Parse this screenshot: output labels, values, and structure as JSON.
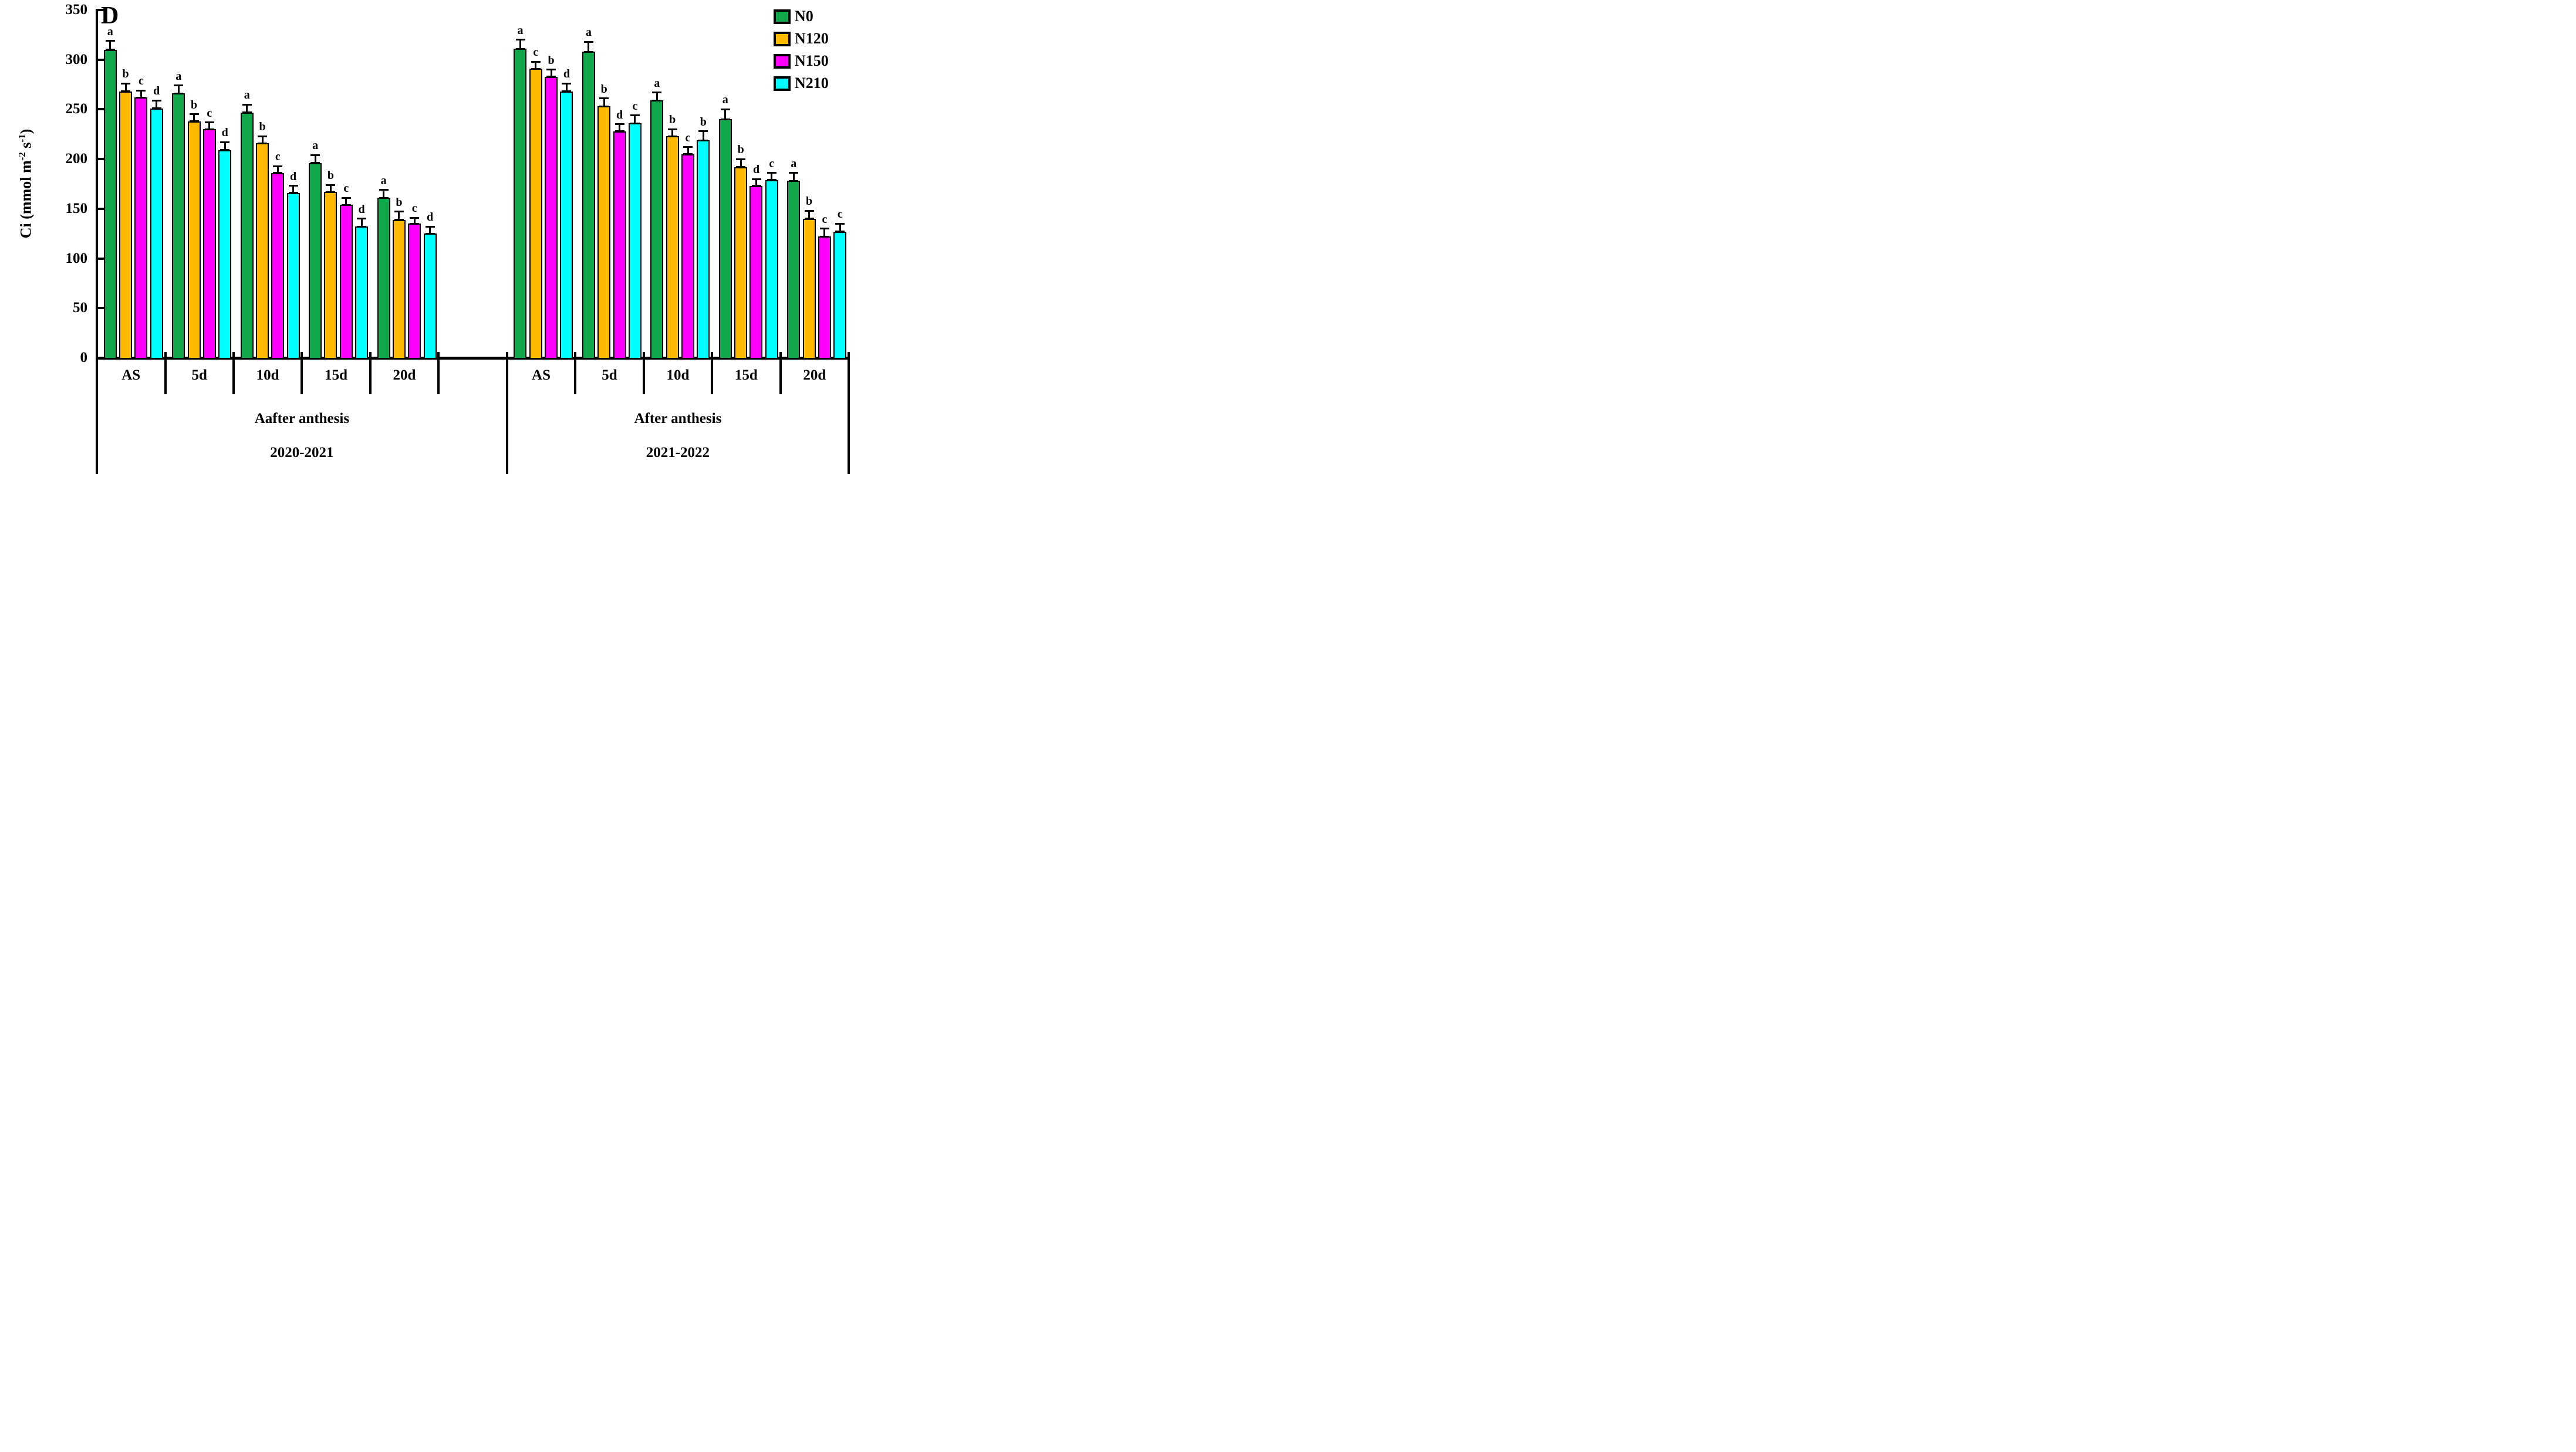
{
  "chart_data": {
    "type": "bar",
    "panel_letter": "D",
    "ylabel": "Ci (mmol m⁻² s⁻¹)",
    "ylabel_parts": {
      "pre": "Ci (mmol m",
      "sup1": "-2",
      "mid": " s",
      "sup2": "-1",
      "post": ")"
    },
    "ylim": [
      0,
      350
    ],
    "yticks": [
      0,
      50,
      100,
      150,
      200,
      250,
      300,
      350
    ],
    "grid": false,
    "legend_position": "top-right",
    "bar_outline_color": "#000000",
    "legend": [
      {
        "label": "N0",
        "color": "#11a74b"
      },
      {
        "label": "N120",
        "color": "#ffba00"
      },
      {
        "label": "N150",
        "color": "#ff00ff"
      },
      {
        "label": "N210",
        "color": "#00ffff"
      }
    ],
    "panels": [
      {
        "anthesis_label": "Aafter anthesis",
        "year_label": "2020-2021",
        "categories": [
          "AS",
          "5d",
          "10d",
          "15d",
          "20d"
        ],
        "series": [
          {
            "name": "N0",
            "color": "#11a74b",
            "values": [
              310,
              266,
              247,
              196,
              161
            ],
            "errors": [
              9,
              8,
              8,
              8,
              8
            ],
            "sig_letters": [
              "a",
              "a",
              "a",
              "a",
              "a"
            ]
          },
          {
            "name": "N120",
            "color": "#ffba00",
            "values": [
              268,
              238,
              216,
              167,
              139
            ],
            "errors": [
              8,
              7,
              7,
              7,
              8
            ],
            "sig_letters": [
              "b",
              "b",
              "b",
              "b",
              "b"
            ]
          },
          {
            "name": "N150",
            "color": "#ff00ff",
            "values": [
              262,
              230,
              186,
              154,
              135
            ],
            "errors": [
              7,
              7,
              7,
              7,
              6
            ],
            "sig_letters": [
              "c",
              "c",
              "c",
              "c",
              "c"
            ]
          },
          {
            "name": "N210",
            "color": "#00ffff",
            "values": [
              251,
              209,
              166,
              132,
              125
            ],
            "errors": [
              8,
              8,
              7,
              8,
              7
            ],
            "sig_letters": [
              "d",
              "d",
              "d",
              "d",
              "d"
            ]
          }
        ]
      },
      {
        "anthesis_label": "After anthesis",
        "year_label": "2021-2022",
        "categories": [
          "AS",
          "5d",
          "10d",
          "15d",
          "20d"
        ],
        "series": [
          {
            "name": "N0",
            "color": "#11a74b",
            "values": [
              311,
              308,
              259,
              240,
              178
            ],
            "errors": [
              9,
              10,
              8,
              10,
              8
            ],
            "sig_letters": [
              "a",
              "a",
              "a",
              "a",
              "a"
            ]
          },
          {
            "name": "N120",
            "color": "#ffba00",
            "values": [
              291,
              253,
              223,
              192,
              140
            ],
            "errors": [
              7,
              8,
              7,
              8,
              8
            ],
            "sig_letters": [
              "c",
              "b",
              "b",
              "b",
              "b"
            ]
          },
          {
            "name": "N150",
            "color": "#ff00ff",
            "values": [
              283,
              228,
              205,
              173,
              122
            ],
            "errors": [
              7,
              7,
              7,
              7,
              8
            ],
            "sig_letters": [
              "b",
              "d",
              "c",
              "d",
              "c"
            ]
          },
          {
            "name": "N210",
            "color": "#00ffff",
            "values": [
              268,
              236,
              219,
              179,
              127
            ],
            "errors": [
              8,
              8,
              9,
              7,
              8
            ],
            "sig_letters": [
              "d",
              "c",
              "b",
              "c",
              "c"
            ]
          }
        ]
      }
    ]
  }
}
